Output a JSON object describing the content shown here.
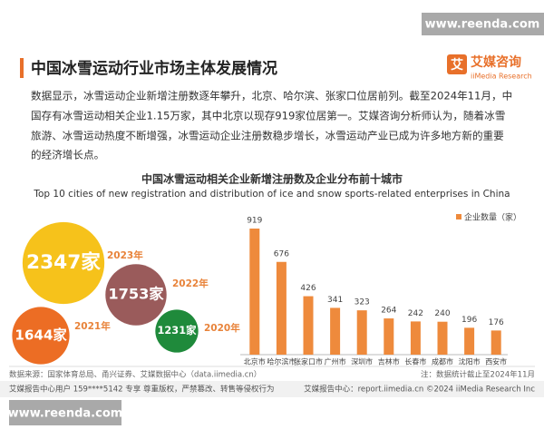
{
  "watermark": "www.reenda.com",
  "header": {
    "title": "中国冰雪运动行业市场主体发展情况",
    "logo": "艾媒咨询",
    "logo_sub": "iiMedia Research",
    "logo_mark": "艾"
  },
  "intro": [
    "数据显示，冰雪运动企业新增注册数逐年攀升，北京、哈尔滨、张家口位居前列。截至2024年11月，中",
    "国存有冰雪运动相关企业1.15万家，其中北京以现存919家位居第一。艾媒咨询分析师认为，随着冰雪",
    "旅游、冰雪运动热度不断增强，冰雪运动企业注册数稳步增长，冰雪运动产业已成为许多地方新的重要",
    "的经济增长点。"
  ],
  "chart_data": [
    {
      "type": "bubble",
      "title": "中国冰雪运动相关企业新增注册数及企业分布前十城市",
      "subtitle": "Top 10 cities of new registration and distribution of ice and snow sports-related enterprises in China",
      "categories": [
        "2023年",
        "2022年",
        "2021年",
        "2020年"
      ],
      "values": [
        2347,
        1753,
        1644,
        1231
      ],
      "value_labels": [
        "2347家",
        "1753家",
        "1644家",
        "1231家"
      ],
      "colors": [
        "#f6c21b",
        "#9a5b5b",
        "#ec6d24",
        "#1f8a3b"
      ],
      "label_color": "#e8833a"
    },
    {
      "type": "bar",
      "categories": [
        "北京市",
        "哈尔滨市",
        "张家口市",
        "广州市",
        "深圳市",
        "吉林市",
        "长春市",
        "成都市",
        "沈阳市",
        "西安市"
      ],
      "series": [
        {
          "name": "企业数量（家）",
          "color": "#ee8a3c",
          "values": [
            919,
            676,
            426,
            341,
            323,
            264,
            242,
            240,
            196,
            176
          ]
        }
      ],
      "legend": "top-right"
    }
  ],
  "source": "数据来源：国家体育总局、甬兴证券、艾媒数据中心（data.iimedia.cn）",
  "note": "注：数据统计截止至2024年11月",
  "footer": {
    "left": "艾媒报告中心用户 159****5142 专享 尊重版权，严禁篡改、转售等侵权行为",
    "right": "艾媒报告中心：report.iimedia.cn ©2024 iiMedia Research Inc"
  }
}
